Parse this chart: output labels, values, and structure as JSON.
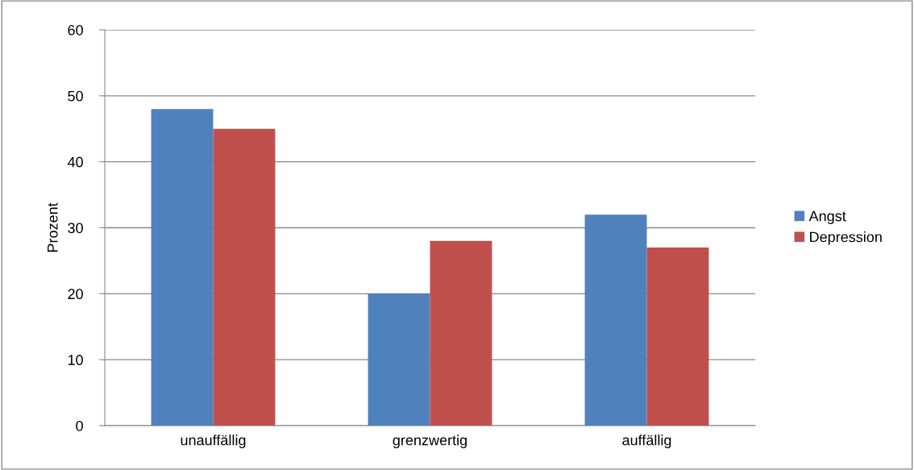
{
  "chart_data": {
    "type": "bar",
    "ylabel": "Prozent",
    "categories": [
      "unauffällig",
      "grenzwertig",
      "auffällig"
    ],
    "series": [
      {
        "name": "Angst",
        "color": "#4f81bd",
        "values": [
          48,
          20,
          32
        ]
      },
      {
        "name": "Depression",
        "color": "#c0504d",
        "values": [
          45,
          28,
          27
        ]
      }
    ],
    "ylim": [
      0,
      60
    ],
    "yticks": [
      0,
      10,
      20,
      30,
      40,
      50,
      60
    ],
    "grid": "y",
    "legend": "right"
  }
}
